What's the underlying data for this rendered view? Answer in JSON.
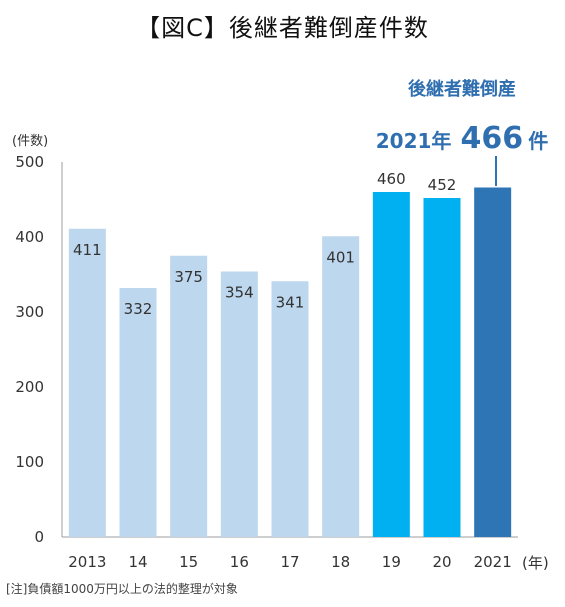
{
  "title": "【図C】後継者難倒産件数",
  "footnote": "[注]負債額1000万円以上の法的整理が対象",
  "chart_data": {
    "type": "bar",
    "ylabel": "(件数)",
    "xlabel": "(年)",
    "ylim": [
      0,
      500
    ],
    "yticks": [
      "0",
      "100",
      "200",
      "300",
      "400",
      "500"
    ],
    "categories": [
      "2013",
      "14",
      "15",
      "16",
      "17",
      "18",
      "19",
      "20",
      "2021"
    ],
    "values": [
      411,
      332,
      375,
      354,
      341,
      401,
      460,
      452,
      466
    ],
    "labels": [
      "411",
      "332",
      "375",
      "354",
      "341",
      "401",
      "460",
      "452",
      ""
    ],
    "bar_colors": [
      "#bdd7ee",
      "#bdd7ee",
      "#bdd7ee",
      "#bdd7ee",
      "#bdd7ee",
      "#bdd7ee",
      "#00b0f0",
      "#00b0f0",
      "#2e75b6"
    ],
    "callout": {
      "title": "後継者難倒産",
      "year_text": "2021年",
      "value_text": "466",
      "unit_text": "件"
    }
  }
}
